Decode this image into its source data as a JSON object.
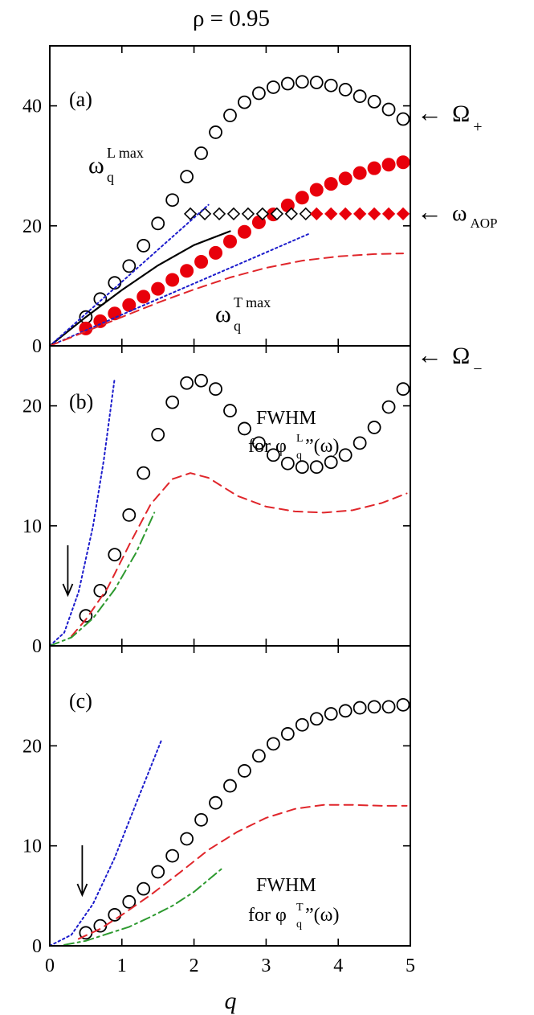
{
  "figure": {
    "title": "ρ = 0.95",
    "xlabel": "q",
    "colors": {
      "axis": "#000000",
      "open_marker": "#000000",
      "filled_marker": "#e8000b",
      "blue_dotted": "#1c1ccc",
      "red_dashed": "#e0262b",
      "green_dashdot": "#2e9a30",
      "black_solid": "#000000"
    }
  },
  "chart_data": [
    {
      "id": "panel-a",
      "type": "scatter",
      "panel_label": "(a)",
      "xlim": [
        0,
        5
      ],
      "ylim": [
        0,
        50
      ],
      "xticks": [
        0,
        1,
        2,
        3,
        4,
        5
      ],
      "yticks": [
        0,
        20,
        40
      ],
      "show_xticklabels": false,
      "annotations": {
        "omega_plus": {
          "arrow": "←",
          "symbol": "Ω",
          "sub": "+"
        },
        "omega_aop": {
          "arrow": "←",
          "symbol": "ω",
          "sub": "AOP"
        },
        "omega_minus": {
          "arrow": "←",
          "symbol": "Ω",
          "sub": "−"
        },
        "omega_l_max": {
          "symbol": "ω",
          "sup": "L max",
          "sub": "q"
        },
        "omega_t_max": {
          "symbol": "ω",
          "sup": "T max",
          "sub": "q"
        }
      },
      "series": [
        {
          "name": "Omega_plus_open_circles",
          "style": "open-circle",
          "x": [
            0.5,
            0.7,
            0.9,
            1.1,
            1.3,
            1.5,
            1.7,
            1.9,
            2.1,
            2.3,
            2.5,
            2.7,
            2.9,
            3.1,
            3.3,
            3.5,
            3.7,
            3.9,
            4.1,
            4.3,
            4.5,
            4.7,
            4.9
          ],
          "y": [
            4.8,
            7.8,
            10.5,
            13.3,
            16.7,
            20.4,
            24.3,
            28.2,
            32.1,
            35.6,
            38.4,
            40.6,
            42.1,
            43.1,
            43.7,
            44.0,
            43.9,
            43.4,
            42.7,
            41.6,
            40.7,
            39.4,
            37.8
          ]
        },
        {
          "name": "Omega_minus_filled_circles",
          "style": "filled-circle",
          "x": [
            0.5,
            0.7,
            0.9,
            1.1,
            1.3,
            1.5,
            1.7,
            1.9,
            2.1,
            2.3,
            2.5,
            2.7,
            2.9,
            3.1,
            3.3,
            3.5,
            3.7,
            3.9,
            4.1,
            4.3,
            4.5,
            4.7,
            4.9
          ],
          "y": [
            2.9,
            4.1,
            5.4,
            6.8,
            8.2,
            9.5,
            11.0,
            12.5,
            14.0,
            15.5,
            17.4,
            19.0,
            20.6,
            21.9,
            23.4,
            24.7,
            26.0,
            27.0,
            27.9,
            28.8,
            29.6,
            30.2,
            30.6
          ]
        },
        {
          "name": "omega_AOP_open_diamonds",
          "style": "open-diamond",
          "x": [
            1.95,
            2.15,
            2.35,
            2.55,
            2.75,
            2.95,
            3.15,
            3.35,
            3.55
          ],
          "y": [
            22.0,
            22.0,
            22.0,
            22.0,
            22.0,
            22.0,
            22.0,
            22.0,
            22.0
          ]
        },
        {
          "name": "omega_AOP_filled_diamonds",
          "style": "filled-diamond",
          "x": [
            3.7,
            3.9,
            4.1,
            4.3,
            4.5,
            4.7,
            4.9
          ],
          "y": [
            22.0,
            22.0,
            22.0,
            22.0,
            22.0,
            22.0,
            22.0
          ]
        },
        {
          "name": "omega_L_max_solid",
          "style": "solid-black",
          "x": [
            0,
            0.5,
            1.0,
            1.5,
            2.0,
            2.5
          ],
          "y": [
            0,
            4.8,
            9.3,
            13.4,
            16.8,
            19.1
          ]
        },
        {
          "name": "omega_L_linear_dotted",
          "style": "dotted-blue",
          "x": [
            0,
            2.2
          ],
          "y": [
            0,
            23.5
          ]
        },
        {
          "name": "omega_T_linear_dotted",
          "style": "dotted-blue",
          "x": [
            0,
            3.6
          ],
          "y": [
            0,
            18.7
          ]
        },
        {
          "name": "omega_T_max_dashed",
          "style": "dashed-red",
          "x": [
            0,
            0.5,
            1.0,
            1.5,
            2.0,
            2.5,
            3.0,
            3.5,
            4.0,
            4.5,
            4.9
          ],
          "y": [
            0,
            2.4,
            4.8,
            7.2,
            9.4,
            11.4,
            13.0,
            14.2,
            14.9,
            15.3,
            15.4
          ]
        }
      ]
    },
    {
      "id": "panel-b",
      "type": "scatter",
      "panel_label": "(b)",
      "xlim": [
        0,
        5
      ],
      "ylim": [
        0,
        25
      ],
      "xticks": [
        0,
        1,
        2,
        3,
        4,
        5
      ],
      "yticks": [
        0,
        10,
        20
      ],
      "show_xticklabels": false,
      "annotation_text": {
        "line1": "FWHM",
        "prefix": "for ",
        "symbol": "φ",
        "sup": "L",
        "sub": "q",
        "suffix": "”(ω)"
      },
      "down_arrow_at_q": 0.25,
      "series": [
        {
          "name": "FWHM_L_open_circles",
          "style": "open-circle",
          "x": [
            0.5,
            0.7,
            0.9,
            1.1,
            1.3,
            1.5,
            1.7,
            1.9,
            2.1,
            2.3,
            2.5,
            2.7,
            2.9,
            3.1,
            3.3,
            3.5,
            3.7,
            3.9,
            4.1,
            4.3,
            4.5,
            4.7,
            4.9
          ],
          "y": [
            2.5,
            4.6,
            7.6,
            10.9,
            14.4,
            17.6,
            20.3,
            21.9,
            22.1,
            21.4,
            19.6,
            18.1,
            16.9,
            15.9,
            15.2,
            14.9,
            14.9,
            15.3,
            15.9,
            16.9,
            18.2,
            19.9,
            21.4
          ]
        },
        {
          "name": "FWHM_L_dotted_blue",
          "style": "dotted-blue",
          "x": [
            0,
            0.2,
            0.4,
            0.6,
            0.75,
            0.9
          ],
          "y": [
            0,
            1.1,
            4.5,
            10.0,
            15.5,
            22.3
          ]
        },
        {
          "name": "FWHM_L_dashed_red",
          "style": "dashed-red",
          "x": [
            0.3,
            0.5,
            0.8,
            1.1,
            1.4,
            1.7,
            1.95,
            2.2,
            2.6,
            3.0,
            3.4,
            3.8,
            4.2,
            4.6,
            4.95
          ],
          "y": [
            0.8,
            2.2,
            4.8,
            8.4,
            11.8,
            13.9,
            14.4,
            14.0,
            12.5,
            11.6,
            11.2,
            11.1,
            11.3,
            11.9,
            12.7
          ]
        },
        {
          "name": "FWHM_L_dashdot_green",
          "style": "dashdot-green",
          "x": [
            0,
            0.3,
            0.6,
            0.9,
            1.2,
            1.45
          ],
          "y": [
            0,
            0.7,
            2.3,
            4.7,
            7.8,
            11.1
          ]
        }
      ]
    },
    {
      "id": "panel-c",
      "type": "scatter",
      "panel_label": "(c)",
      "xlim": [
        0,
        5
      ],
      "ylim": [
        0,
        30
      ],
      "xticks": [
        0,
        1,
        2,
        3,
        4,
        5
      ],
      "yticks": [
        0,
        10,
        20
      ],
      "show_xticklabels": true,
      "annotation_text": {
        "line1": "FWHM",
        "prefix": "for ",
        "symbol": "φ",
        "sup": "T",
        "sub": "q",
        "suffix": "”(ω)"
      },
      "down_arrow_at_q": 0.45,
      "series": [
        {
          "name": "FWHM_T_open_circles",
          "style": "open-circle",
          "x": [
            0.5,
            0.7,
            0.9,
            1.1,
            1.3,
            1.5,
            1.7,
            1.9,
            2.1,
            2.3,
            2.5,
            2.7,
            2.9,
            3.1,
            3.3,
            3.5,
            3.7,
            3.9,
            4.1,
            4.3,
            4.5,
            4.7,
            4.9
          ],
          "y": [
            1.3,
            2.0,
            3.1,
            4.4,
            5.7,
            7.4,
            9.0,
            10.7,
            12.6,
            14.3,
            16.0,
            17.5,
            19.0,
            20.2,
            21.2,
            22.1,
            22.7,
            23.2,
            23.5,
            23.8,
            23.9,
            23.9,
            24.1
          ]
        },
        {
          "name": "FWHM_T_dotted_blue",
          "style": "dotted-blue",
          "x": [
            0,
            0.3,
            0.6,
            0.9,
            1.2,
            1.55
          ],
          "y": [
            0,
            1.1,
            4.2,
            8.8,
            14.3,
            20.6
          ]
        },
        {
          "name": "FWHM_T_dashed_red",
          "style": "dashed-red",
          "x": [
            0.4,
            0.7,
            1.0,
            1.4,
            1.8,
            2.2,
            2.6,
            3.0,
            3.4,
            3.8,
            4.2,
            4.6,
            4.95
          ],
          "y": [
            0.7,
            1.7,
            3.1,
            5.1,
            7.3,
            9.6,
            11.4,
            12.8,
            13.7,
            14.1,
            14.1,
            14.0,
            14.0
          ]
        },
        {
          "name": "FWHM_T_dashdot_green",
          "style": "dashdot-green",
          "x": [
            0.2,
            0.5,
            0.8,
            1.1,
            1.4,
            1.7,
            2.0,
            2.4
          ],
          "y": [
            0.1,
            0.5,
            1.2,
            1.9,
            2.9,
            4.0,
            5.4,
            7.8
          ]
        }
      ]
    }
  ]
}
